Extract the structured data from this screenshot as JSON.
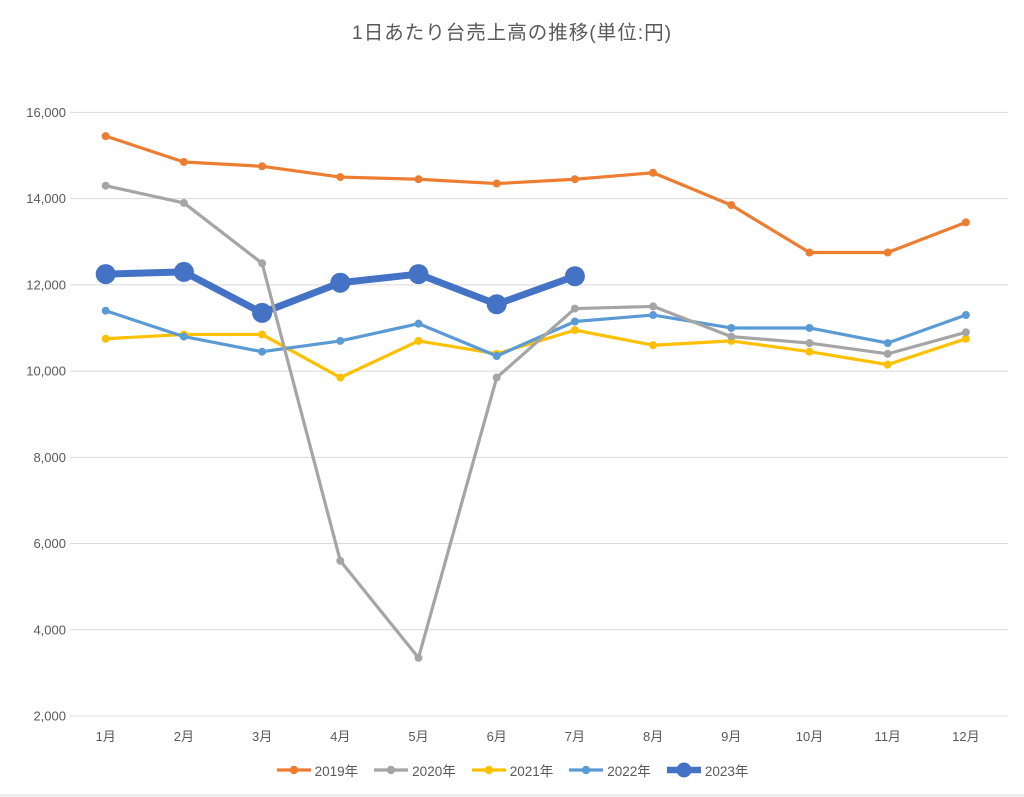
{
  "chart_data": {
    "type": "line",
    "title": "1日あたり台売上高の推移(単位:円)",
    "unit_label": "円",
    "categories": [
      "1月",
      "2月",
      "3月",
      "4月",
      "5月",
      "6月",
      "7月",
      "8月",
      "9月",
      "10月",
      "11月",
      "12月"
    ],
    "series": [
      {
        "name": "2019年",
        "color": "#ED7D31",
        "emphasis": false,
        "values": [
          15450,
          14850,
          14750,
          14500,
          14450,
          14350,
          14450,
          14600,
          13850,
          12750,
          12750,
          13450
        ]
      },
      {
        "name": "2020年",
        "color": "#A5A5A5",
        "emphasis": false,
        "values": [
          14300,
          13900,
          12500,
          5600,
          3350,
          9850,
          11450,
          11500,
          10800,
          10650,
          10400,
          10900
        ]
      },
      {
        "name": "2021年",
        "color": "#FFC000",
        "emphasis": false,
        "values": [
          10750,
          10850,
          10850,
          9850,
          10700,
          10400,
          10950,
          10600,
          10700,
          10450,
          10150,
          10750
        ]
      },
      {
        "name": "2022年",
        "color": "#5B9BD5",
        "emphasis": false,
        "values": [
          11400,
          10800,
          10450,
          10700,
          11100,
          10350,
          11150,
          11300,
          11000,
          11000,
          10650,
          11300
        ]
      },
      {
        "name": "2023年",
        "color": "#4472C4",
        "emphasis": true,
        "values": [
          12250,
          12300,
          11350,
          12050,
          12250,
          11550,
          12200
        ]
      }
    ],
    "ylim": [
      2000,
      16000
    ],
    "ytick_step": 2000,
    "ytick_labels": [
      "2,000",
      "4,000",
      "6,000",
      "8,000",
      "10,000",
      "12,000",
      "14,000",
      "16,000"
    ],
    "grid": "horizontal",
    "gridline_color": "#D9D9D9",
    "axis_label_color": "#595959",
    "legend_position": "bottom"
  }
}
